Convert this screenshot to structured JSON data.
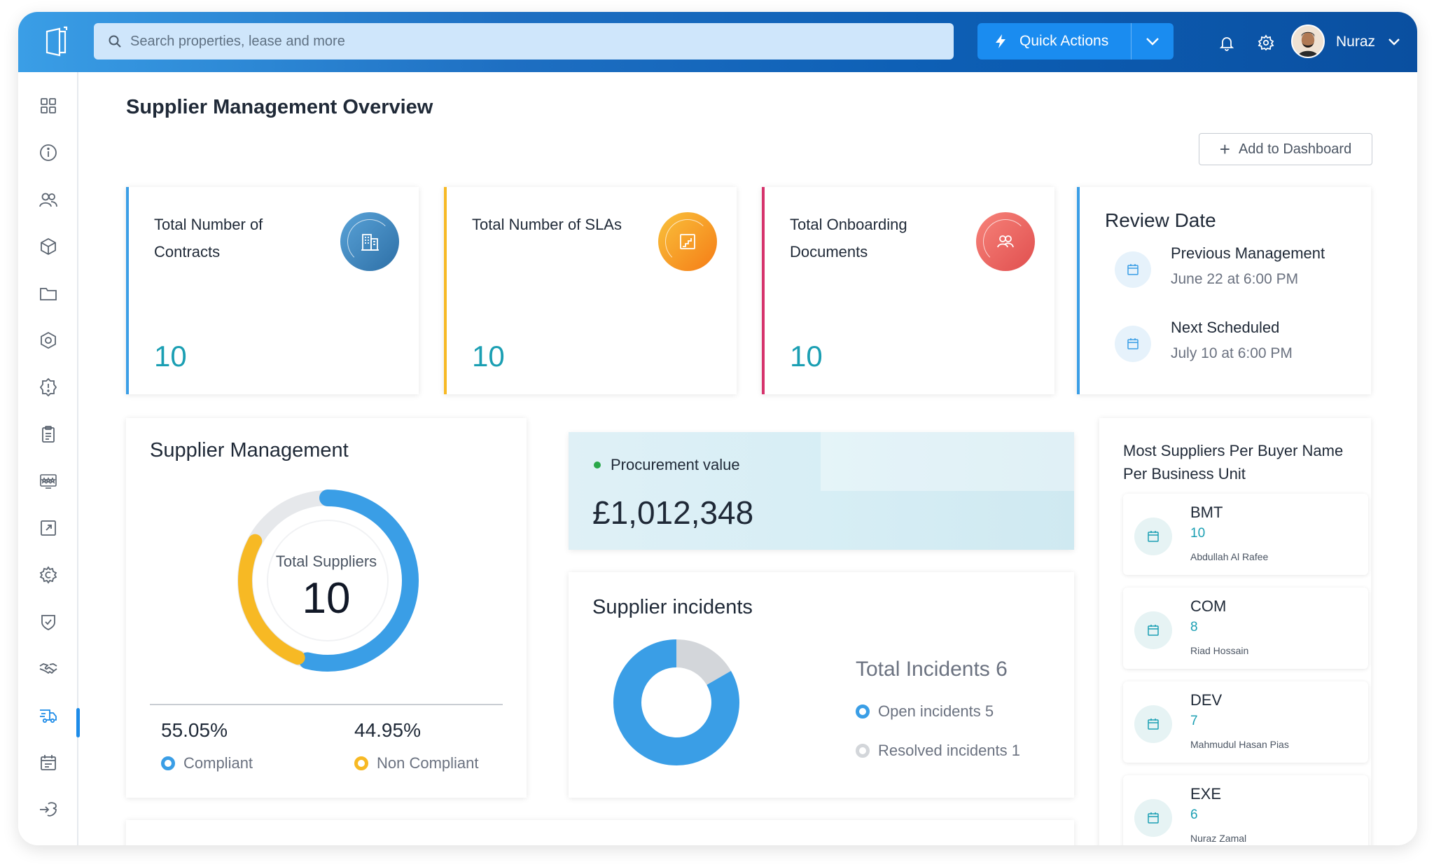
{
  "colors": {
    "accent": "#1a8cf0",
    "teal": "#1b9fb3",
    "compliant": "#3a9ee6",
    "non_compliant": "#f7b924",
    "resolved": "#d3d6da",
    "contracts_border": "#3a9ee6",
    "slas_border": "#f7b924",
    "docs_border": "#d6336c"
  },
  "topbar": {
    "search_placeholder": "Search properties, lease and more",
    "quick_actions_label": "Quick Actions",
    "user_name": "Nuraz",
    "icons": [
      "logo-icon",
      "search-icon",
      "bolt-icon",
      "chevron-down-icon",
      "bell-icon",
      "gear-icon",
      "avatar"
    ]
  },
  "sidebar": {
    "items": [
      {
        "icon": "grid-icon"
      },
      {
        "icon": "info-icon"
      },
      {
        "icon": "users-icon"
      },
      {
        "icon": "cube-icon"
      },
      {
        "icon": "folder-icon"
      },
      {
        "icon": "hexagon-icon"
      },
      {
        "icon": "alert-badge-icon"
      },
      {
        "icon": "clipboard-icon"
      },
      {
        "icon": "rating-icon"
      },
      {
        "icon": "external-link-icon"
      },
      {
        "icon": "settings-cog-icon"
      },
      {
        "icon": "shield-check-icon"
      },
      {
        "icon": "handshake-icon"
      },
      {
        "icon": "delivery-truck-icon",
        "active": true
      },
      {
        "icon": "calendar-icon"
      },
      {
        "icon": "logout-icon"
      }
    ]
  },
  "page": {
    "title": "Supplier Management Overview",
    "add_to_dashboard": "Add to Dashboard"
  },
  "stats": [
    {
      "label": "Total Number of Contracts",
      "value": "10",
      "icon": "building-icon"
    },
    {
      "label": "Total Number of SLAs",
      "value": "10",
      "icon": "stairs-icon"
    },
    {
      "label": "Total Onboarding Documents",
      "value": "10",
      "icon": "users-icon"
    }
  ],
  "review": {
    "title": "Review Date",
    "rows": [
      {
        "name": "Previous Management",
        "date": "June 22 at 6:00 PM"
      },
      {
        "name": "Next Scheduled",
        "date": "July 10 at 6:00 PM"
      }
    ]
  },
  "supplier_management": {
    "title": "Supplier Management",
    "center_label": "Total Suppliers",
    "center_value": "10",
    "compliant_pct": "55.05%",
    "compliant_label": "Compliant",
    "non_compliant_pct": "44.95%",
    "non_compliant_label": "Non Compliant",
    "compliant_fraction": 0.5505,
    "non_compliant_fraction": 0.4495
  },
  "procurement": {
    "label": "Procurement value",
    "value": "£1,012,348"
  },
  "incidents": {
    "title": "Supplier incidents",
    "total_label": "Total Incidents 6",
    "open_label": "Open incidents 5",
    "resolved_label": "Resolved incidents 1",
    "open": 5,
    "resolved": 1
  },
  "buyers": {
    "title": "Most Suppliers Per Buyer Name Per Business Unit",
    "items": [
      {
        "code": "BMT",
        "count": "10",
        "name": "Abdullah Al Rafee"
      },
      {
        "code": "COM",
        "count": "8",
        "name": "Riad Hossain"
      },
      {
        "code": "DEV",
        "count": "7",
        "name": "Mahmudul Hasan Pias"
      },
      {
        "code": "EXE",
        "count": "6",
        "name": "Nuraz Zamal"
      }
    ]
  }
}
